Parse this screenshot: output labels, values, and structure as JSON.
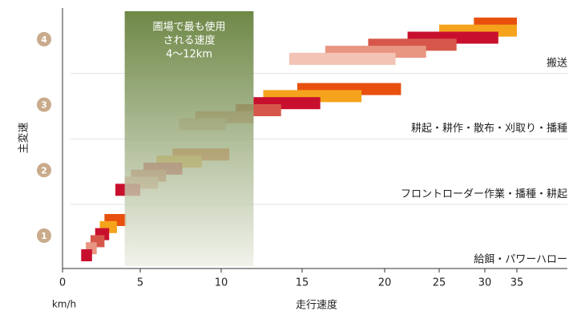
{
  "chart_data": {
    "type": "range-bar",
    "y_label": "主変速",
    "x_label": "走行速度",
    "x_unit": "km/h",
    "xlim": [
      0,
      35
    ],
    "xticks": [
      0,
      5,
      10,
      15,
      20,
      25,
      30,
      35
    ],
    "highlight": {
      "range": [
        4,
        12
      ],
      "label": [
        "圃場で最も使用",
        "される速度",
        "4〜12km"
      ]
    },
    "groups": [
      {
        "label": "1",
        "work": "給餌・パワーハロー",
        "bars": [
          {
            "start": 2.7,
            "end": 4.1,
            "color": "#e8500e"
          },
          {
            "start": 2.4,
            "end": 3.5,
            "color": "#f5a31c"
          },
          {
            "start": 2.1,
            "end": 3.0,
            "color": "#c8102e"
          },
          {
            "start": 1.8,
            "end": 2.7,
            "color": "#d6574a"
          },
          {
            "start": 1.5,
            "end": 2.2,
            "color": "#e89582"
          },
          {
            "start": 1.2,
            "end": 1.9,
            "color": "#c8102e"
          }
        ]
      },
      {
        "label": "2",
        "work": "フロントローダー作業・播種・耕起",
        "bars": [
          {
            "start": 7.0,
            "end": 10.5,
            "color": "#e8500e"
          },
          {
            "start": 6.0,
            "end": 8.8,
            "color": "#f5a31c"
          },
          {
            "start": 5.2,
            "end": 7.6,
            "color": "#c8102e"
          },
          {
            "start": 4.4,
            "end": 6.6,
            "color": "#d6574a"
          },
          {
            "start": 4.0,
            "end": 6.1,
            "color": "#e89582"
          },
          {
            "start": 3.4,
            "end": 5.0,
            "color": "#c8102e"
          }
        ]
      },
      {
        "label": "3",
        "work": "耕起・耕作・散布・刈取り・播種",
        "bars": [
          {
            "start": 14.7,
            "end": 21.5,
            "color": "#e8500e"
          },
          {
            "start": 12.6,
            "end": 18.6,
            "color": "#f5a31c"
          },
          {
            "start": 12.0,
            "end": 16.1,
            "color": "#c8102e"
          },
          {
            "start": 10.9,
            "end": 13.7,
            "color": "#d6574a"
          },
          {
            "start": 8.4,
            "end": 12.0,
            "color": "#e89582"
          },
          {
            "start": 7.4,
            "end": 10.3,
            "color": "#f3c3b5"
          }
        ]
      },
      {
        "label": "4",
        "work": "搬送",
        "bars": [
          {
            "start": 28.8,
            "end": 35,
            "color": "#e8500e"
          },
          {
            "start": 25.0,
            "end": 35,
            "color": "#f5a31c"
          },
          {
            "start": 22.1,
            "end": 32.1,
            "color": "#c8102e"
          },
          {
            "start": 19.0,
            "end": 26.9,
            "color": "#d6574a"
          },
          {
            "start": 16.4,
            "end": 23.8,
            "color": "#e89582"
          },
          {
            "start": 14.2,
            "end": 21.0,
            "color": "#f3c3b5"
          }
        ]
      }
    ]
  }
}
